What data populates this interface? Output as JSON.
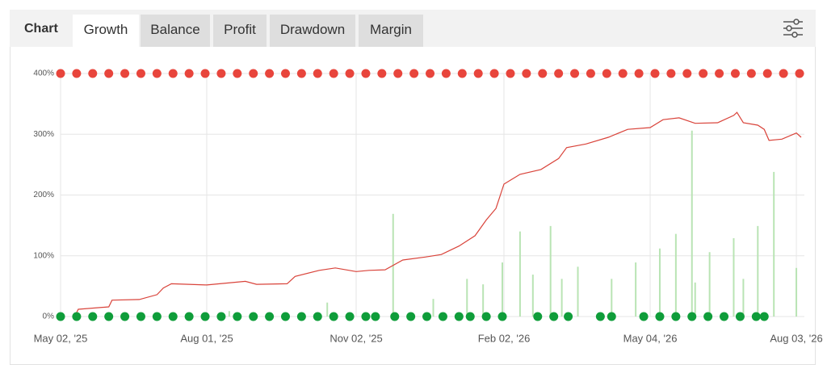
{
  "header": {
    "label": "Chart",
    "tabs": [
      "Growth",
      "Balance",
      "Profit",
      "Drawdown",
      "Margin"
    ],
    "active_tab": "Growth"
  },
  "chart_data": {
    "type": "line",
    "xlim": [
      "2025-05-02",
      "2026-08-08"
    ],
    "ylim": [
      0,
      400
    ],
    "grid": true,
    "xticks": [
      {
        "value": "2025-05-02",
        "label": "May 02, '25"
      },
      {
        "value": "2025-08-01",
        "label": "Aug 01, '25"
      },
      {
        "value": "2025-11-02",
        "label": "Nov 02, '25"
      },
      {
        "value": "2026-02-02",
        "label": "Feb 02, '26"
      },
      {
        "value": "2026-05-04",
        "label": "May 04, '26"
      },
      {
        "value": "2026-08-03",
        "label": "Aug 03, '26"
      }
    ],
    "yticks": [
      {
        "value": 0,
        "label": "0%"
      },
      {
        "value": 100,
        "label": "100%"
      },
      {
        "value": 200,
        "label": "200%"
      },
      {
        "value": 300,
        "label": "300%"
      },
      {
        "value": 400,
        "label": "400%"
      }
    ],
    "series": [
      {
        "type": "bar",
        "color": "#b9e4b4",
        "x": [
          "2025-08-15",
          "2025-10-15",
          "2025-11-25",
          "2025-12-20",
          "2026-01-10",
          "2026-01-20",
          "2026-02-01",
          "2026-02-12",
          "2026-02-20",
          "2026-03-03",
          "2026-03-10",
          "2026-03-20",
          "2026-04-10",
          "2026-04-25",
          "2026-05-10",
          "2026-05-20",
          "2026-05-30",
          "2026-06-01",
          "2026-06-10",
          "2026-06-25",
          "2026-07-01",
          "2026-07-10",
          "2026-07-20",
          "2026-08-03"
        ],
        "values": [
          9,
          23,
          169,
          29,
          62,
          53,
          89,
          140,
          69,
          149,
          62,
          82,
          62,
          89,
          112,
          136,
          306,
          56,
          106,
          129,
          62,
          149,
          238,
          80
        ]
      },
      {
        "type": "line",
        "color": "#d9433a",
        "x": [
          "2025-05-11",
          "2025-05-13",
          "2025-06-01",
          "2025-06-03",
          "2025-06-20",
          "2025-07-01",
          "2025-07-05",
          "2025-07-10",
          "2025-08-01",
          "2025-08-25",
          "2025-09-01",
          "2025-09-20",
          "2025-09-25",
          "2025-10-10",
          "2025-10-20",
          "2025-11-02",
          "2025-11-10",
          "2025-11-20",
          "2025-12-01",
          "2025-12-15",
          "2025-12-25",
          "2026-01-05",
          "2026-01-15",
          "2026-01-22",
          "2026-01-28",
          "2026-02-02",
          "2026-02-12",
          "2026-02-25",
          "2026-03-08",
          "2026-03-13",
          "2026-03-25",
          "2026-04-08",
          "2026-04-20",
          "2026-05-04",
          "2026-05-12",
          "2026-05-22",
          "2026-06-01",
          "2026-06-15",
          "2026-06-25",
          "2026-06-27",
          "2026-07-01",
          "2026-07-10",
          "2026-07-14",
          "2026-07-17",
          "2026-07-25",
          "2026-08-03",
          "2026-08-06"
        ],
        "values": [
          1,
          12,
          16,
          27,
          28,
          36,
          47,
          54,
          52,
          58,
          53,
          54,
          66,
          76,
          80,
          74,
          76,
          77,
          93,
          98,
          102,
          116,
          133,
          159,
          178,
          218,
          234,
          242,
          260,
          278,
          284,
          295,
          308,
          311,
          324,
          327,
          318,
          319,
          331,
          336,
          319,
          315,
          308,
          290,
          292,
          302,
          295
        ]
      },
      {
        "type": "scatter",
        "color": "#e8453c",
        "x": [
          "2025-05-02",
          "2025-05-12",
          "2025-05-22",
          "2025-06-01",
          "2025-06-11",
          "2025-06-21",
          "2025-07-01",
          "2025-07-11",
          "2025-07-21",
          "2025-07-31",
          "2025-08-10",
          "2025-08-20",
          "2025-08-30",
          "2025-09-09",
          "2025-09-19",
          "2025-09-29",
          "2025-10-09",
          "2025-10-19",
          "2025-10-29",
          "2025-11-08",
          "2025-11-18",
          "2025-11-28",
          "2025-12-08",
          "2025-12-18",
          "2025-12-28",
          "2026-01-07",
          "2026-01-17",
          "2026-01-27",
          "2026-02-06",
          "2026-02-16",
          "2026-02-26",
          "2026-03-08",
          "2026-03-18",
          "2026-03-28",
          "2026-04-07",
          "2026-04-17",
          "2026-04-27",
          "2026-05-07",
          "2026-05-17",
          "2026-05-27",
          "2026-06-06",
          "2026-06-16",
          "2026-06-26",
          "2026-07-06",
          "2026-07-16",
          "2026-07-26",
          "2026-08-05"
        ],
        "values": [
          400,
          400,
          400,
          400,
          400,
          400,
          400,
          400,
          400,
          400,
          400,
          400,
          400,
          400,
          400,
          400,
          400,
          400,
          400,
          400,
          400,
          400,
          400,
          400,
          400,
          400,
          400,
          400,
          400,
          400,
          400,
          400,
          400,
          400,
          400,
          400,
          400,
          400,
          400,
          400,
          400,
          400,
          400,
          400,
          400,
          400,
          400
        ]
      },
      {
        "type": "scatter",
        "color": "#0f9d3a",
        "x": [
          "2025-05-02",
          "2025-05-12",
          "2025-05-22",
          "2025-06-01",
          "2025-06-11",
          "2025-06-21",
          "2025-07-01",
          "2025-07-11",
          "2025-07-21",
          "2025-07-31",
          "2025-08-10",
          "2025-08-20",
          "2025-08-30",
          "2025-09-09",
          "2025-09-19",
          "2025-09-29",
          "2025-10-09",
          "2025-10-19",
          "2025-10-29",
          "2025-11-08",
          "2025-11-14",
          "2025-11-26",
          "2025-12-06",
          "2025-12-16",
          "2025-12-26",
          "2026-01-05",
          "2026-01-12",
          "2026-01-22",
          "2026-02-01",
          "2026-02-23",
          "2026-03-05",
          "2026-03-14",
          "2026-04-03",
          "2026-04-10",
          "2026-04-30",
          "2026-05-10",
          "2026-05-20",
          "2026-05-30",
          "2026-06-09",
          "2026-06-19",
          "2026-06-29",
          "2026-07-09",
          "2026-07-14"
        ],
        "values": [
          0,
          0,
          0,
          0,
          0,
          0,
          0,
          0,
          0,
          0,
          0,
          0,
          0,
          0,
          0,
          0,
          0,
          0,
          0,
          0,
          0,
          0,
          0,
          0,
          0,
          0,
          0,
          0,
          0,
          0,
          0,
          0,
          0,
          0,
          0,
          0,
          0,
          0,
          0,
          0,
          0,
          0,
          0
        ]
      }
    ]
  }
}
